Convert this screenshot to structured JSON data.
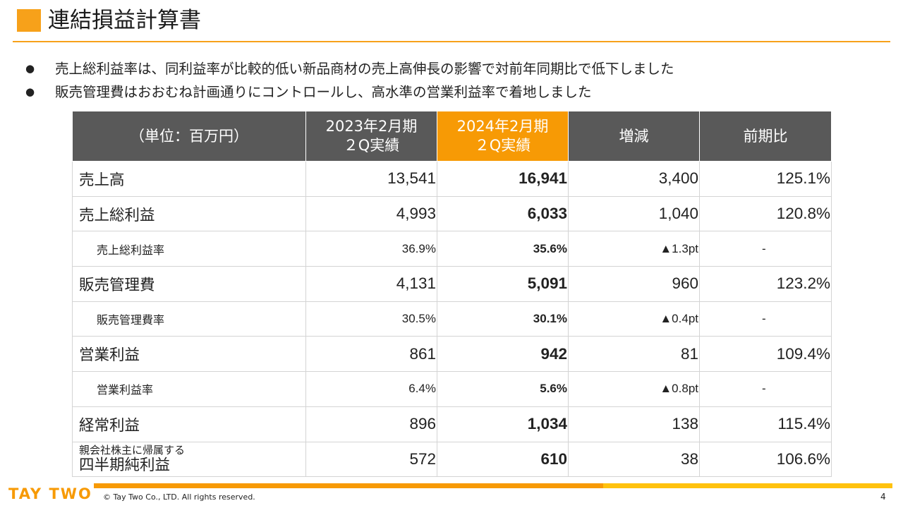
{
  "title": "連結損益計算書",
  "bullets": [
    "売上総利益率は、同利益率が比較的低い新品商材の売上高伸長の影響で対前年同期比で低下しました",
    "販売管理費はおおむね計画通りにコントロールし、高水準の営業利益率で着地しました"
  ],
  "bullet_marker": "●",
  "table": {
    "headers": {
      "unit": "（単位：百万円）",
      "prev_line1": "2023年2月期",
      "prev_line2": "２Q実績",
      "curr_line1": "2024年2月期",
      "curr_line2": "２Q実績",
      "change": "増減",
      "yoy": "前期比"
    },
    "rows": [
      {
        "label": "売上高",
        "prev": "13,541",
        "curr": "16,941",
        "change": "3,400",
        "yoy": "125.1%"
      },
      {
        "label": "売上総利益",
        "prev": "4,993",
        "curr": "6,033",
        "change": "1,040",
        "yoy": "120.8%"
      },
      {
        "label": "売上総利益率",
        "prev": "36.9%",
        "curr": "35.6%",
        "change": "▲1.3pt",
        "yoy": "-"
      },
      {
        "label": "販売管理費",
        "prev": "4,131",
        "curr": "5,091",
        "change": "960",
        "yoy": "123.2%"
      },
      {
        "label": "販売管理費率",
        "prev": "30.5%",
        "curr": "30.1%",
        "change": "▲0.4pt",
        "yoy": "-"
      },
      {
        "label": "営業利益",
        "prev": "861",
        "curr": "942",
        "change": "81",
        "yoy": "109.4%"
      },
      {
        "label": "営業利益率",
        "prev": "6.4%",
        "curr": "5.6%",
        "change": "▲0.8pt",
        "yoy": "-"
      },
      {
        "label": "経常利益",
        "prev": "896",
        "curr": "1,034",
        "change": "138",
        "yoy": "115.4%"
      },
      {
        "label_small": "親会社株主に帰属する",
        "label_big": "四半期純利益",
        "prev": "572",
        "curr": "610",
        "change": "38",
        "yoy": "106.6%"
      }
    ]
  },
  "footer": {
    "logo_text": "TAY TWO",
    "copyright": "© Tay Two Co., LTD. All rights reserved.",
    "page_number": "4"
  },
  "colors": {
    "accent_orange": "#F79A05",
    "accent_yellow": "#FFC20E",
    "header_gray": "#595959"
  }
}
